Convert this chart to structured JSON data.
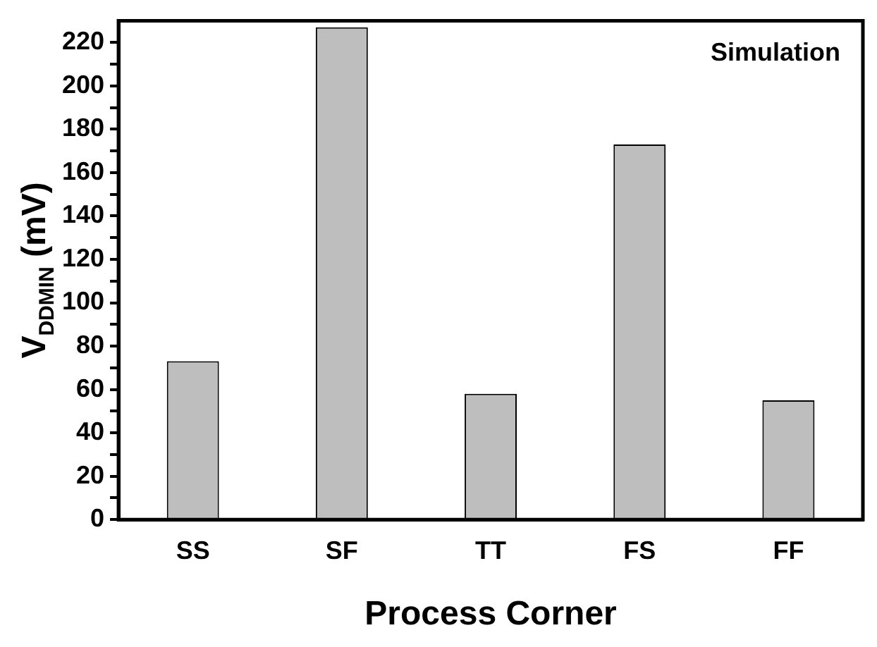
{
  "chart_data": {
    "type": "bar",
    "xlabel": "Process Corner",
    "ylabel": "V$_{DDMIN}$ (mV)",
    "annotations": [
      "Simulation"
    ],
    "categories": [
      "SS",
      "SF",
      "TT",
      "FS",
      "FF"
    ],
    "values": [
      73,
      227,
      58,
      173,
      55
    ],
    "color": "#bebebe",
    "ylim": [
      0,
      230
    ],
    "yticks": [
      0,
      {
        "value": 10,
        "label": null
      },
      20,
      {
        "value": 30,
        "label": null
      },
      40,
      {
        "value": 50,
        "label": null
      },
      60,
      {
        "value": 70,
        "label": null
      },
      80,
      {
        "value": 90,
        "label": null
      },
      100,
      {
        "value": 110,
        "label": null
      },
      120,
      {
        "value": 130,
        "label": null
      },
      140,
      {
        "value": 150,
        "label": null
      },
      160,
      {
        "value": 170,
        "label": null
      },
      180,
      {
        "value": 190,
        "label": null
      },
      200,
      {
        "value": 210,
        "label": null
      },
      220
    ],
    "grid": false,
    "legend": false
  }
}
